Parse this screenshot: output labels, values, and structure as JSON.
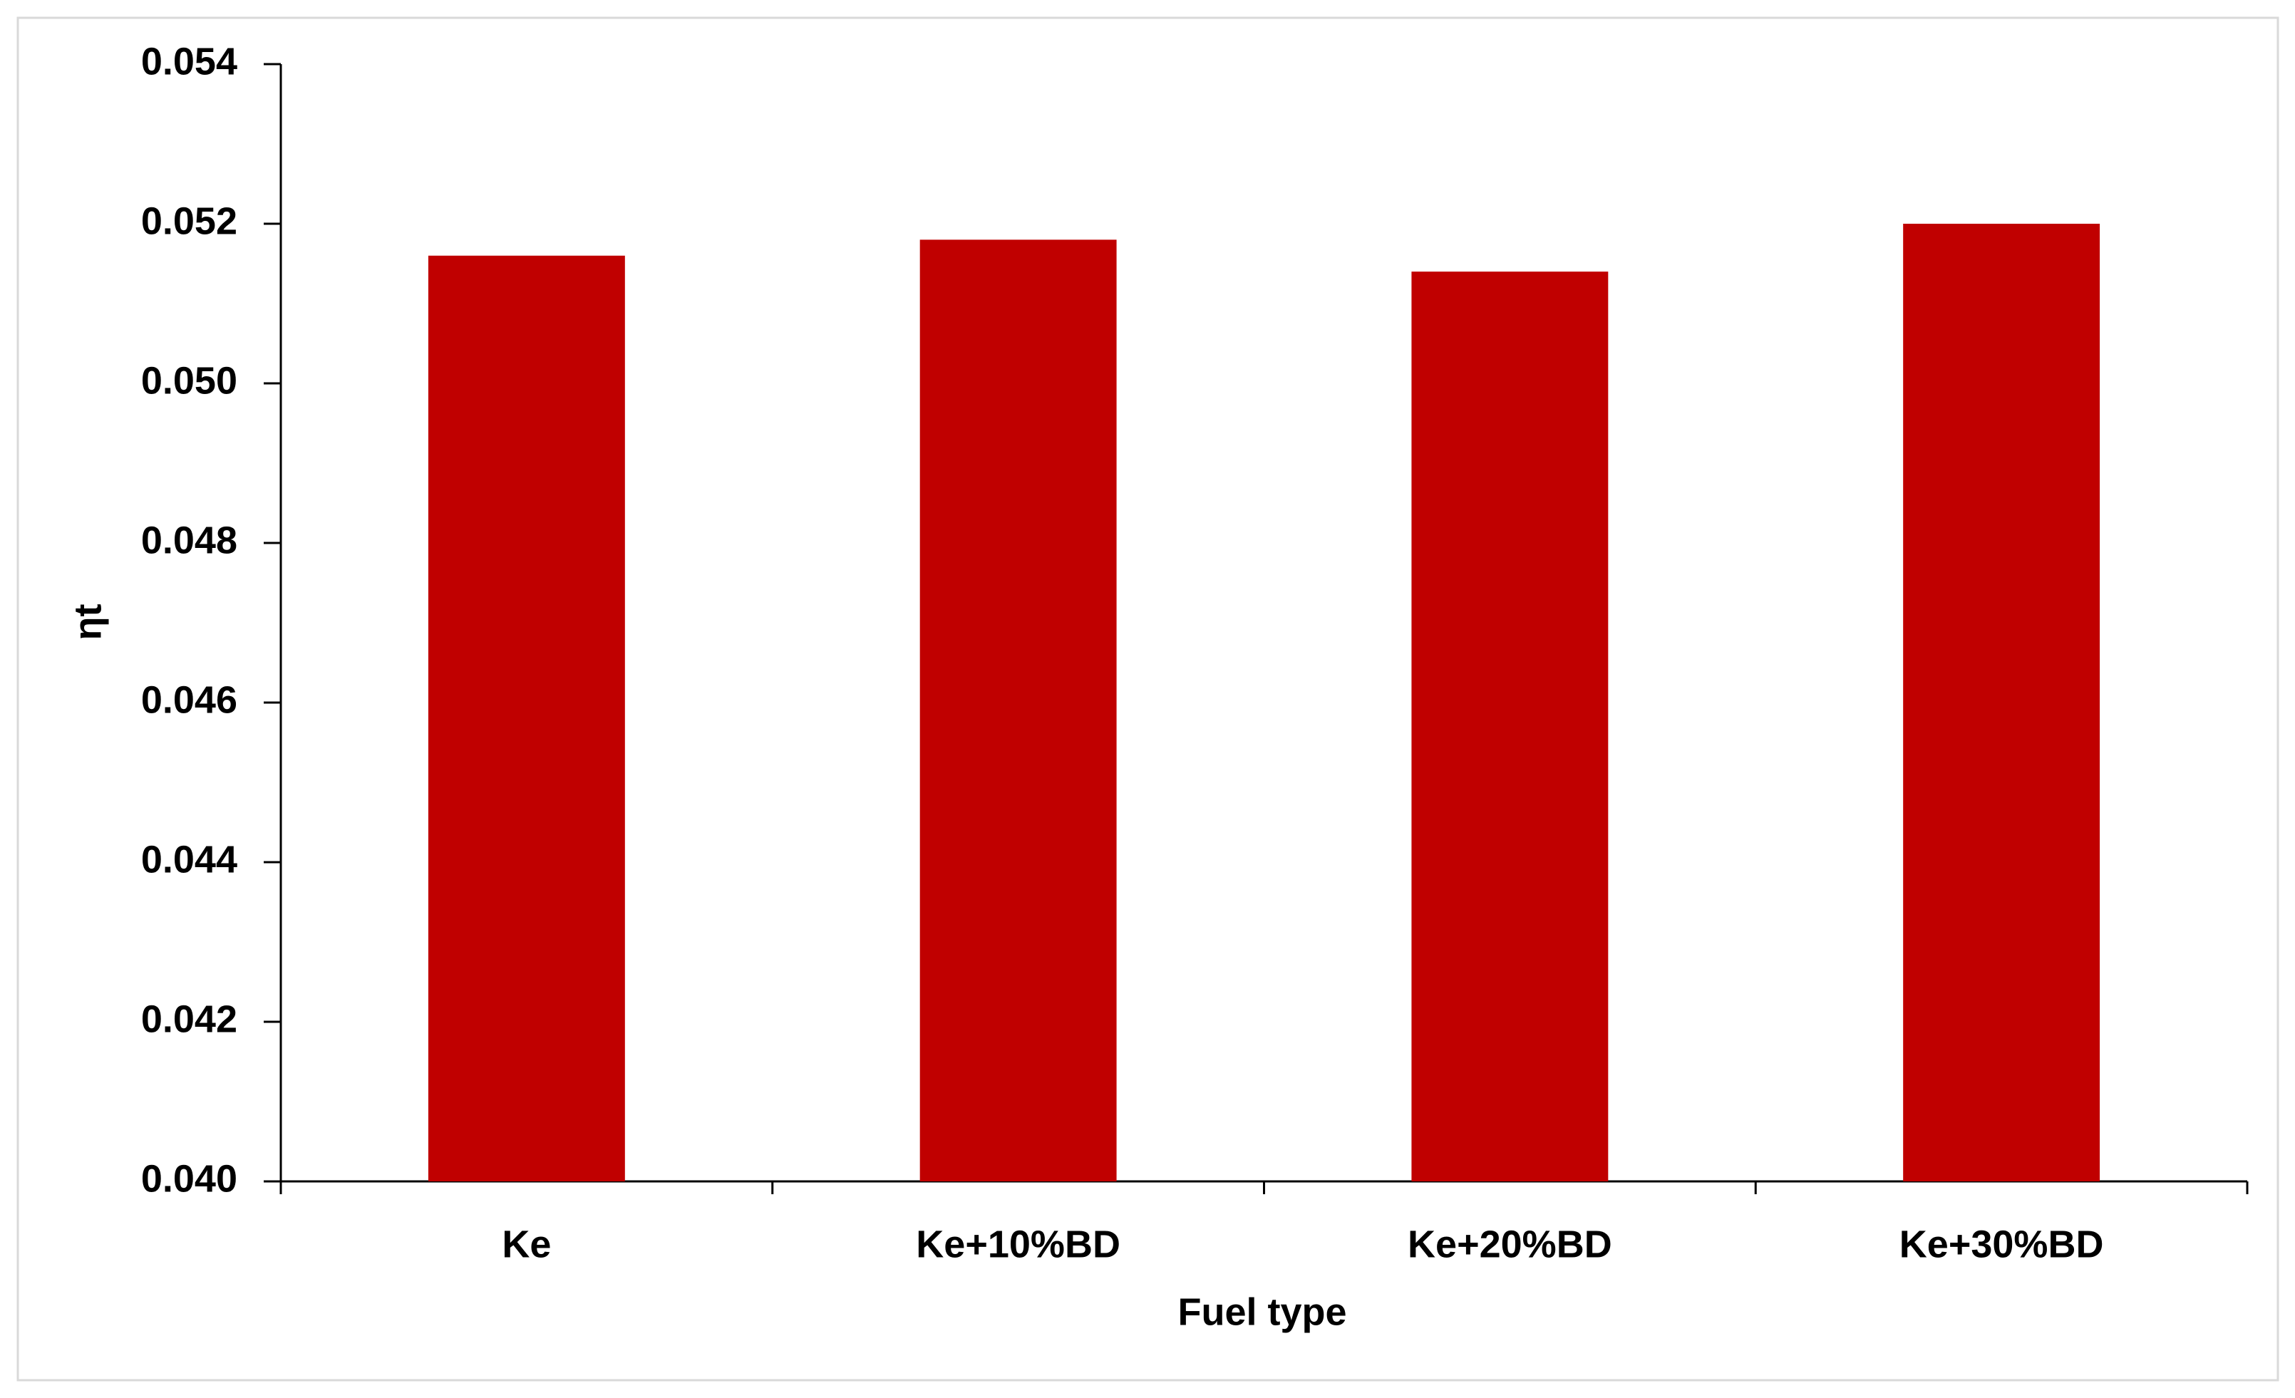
{
  "chart_data": {
    "type": "bar",
    "x_label": "Fuel type",
    "y_label": "ηt",
    "categories": [
      "Ke",
      "Ke+10%BD",
      "Ke+20%BD",
      "Ke+30%BD"
    ],
    "values": [
      0.0516,
      0.0518,
      0.0514,
      0.052
    ],
    "color": "#c00000",
    "ylim": [
      0.04,
      0.054
    ],
    "yticks": [
      {
        "value": 0.04,
        "label": "0.040"
      },
      0.042,
      0.044,
      0.046,
      0.048,
      {
        "value": 0.05,
        "label": "0.050"
      },
      0.052,
      0.054
    ],
    "grid": false
  }
}
